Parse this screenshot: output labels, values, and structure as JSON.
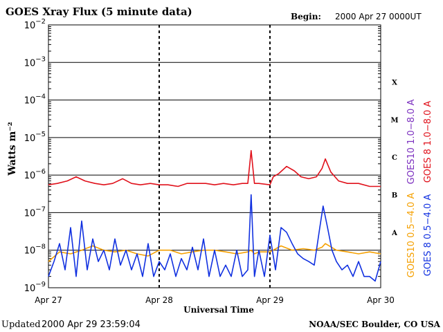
{
  "header": {
    "title": "GOES Xray Flux (5 minute data)",
    "begin_label": "Begin:",
    "begin_value": "2000 Apr 27 0000UT"
  },
  "footer": {
    "updated_label": "Updated",
    "updated_value": "2000 Apr 29 23:59:04",
    "credit": "NOAA/SEC Boulder, CO USA"
  },
  "chart_data": {
    "type": "line",
    "title": "GOES Xray Flux (5 minute data)",
    "xlabel": "Universal Time",
    "ylabel": "Watts m⁻²",
    "y_scale": "log",
    "ylim": [
      1e-09,
      0.01
    ],
    "xlim": [
      "Apr 27",
      "Apr 30"
    ],
    "x_ticks": [
      "Apr 27",
      "Apr 28",
      "Apr 29",
      "Apr 30"
    ],
    "y_ticks": [
      {
        "mantissa": "10",
        "exp": "−9",
        "value": 1e-09
      },
      {
        "mantissa": "10",
        "exp": "−8",
        "value": 1e-08
      },
      {
        "mantissa": "10",
        "exp": "−7",
        "value": 1e-07
      },
      {
        "mantissa": "10",
        "exp": "−6",
        "value": 1e-06
      },
      {
        "mantissa": "10",
        "exp": "−5",
        "value": 1e-05
      },
      {
        "mantissa": "10",
        "exp": "−4",
        "value": 0.0001
      },
      {
        "mantissa": "10",
        "exp": "−3",
        "value": 0.001
      },
      {
        "mantissa": "10",
        "exp": "−2",
        "value": 0.01
      }
    ],
    "flare_classes": [
      {
        "label": "A",
        "value": 3e-08
      },
      {
        "label": "B",
        "value": 3e-07
      },
      {
        "label": "C",
        "value": 3e-06
      },
      {
        "label": "M",
        "value": 3e-05
      },
      {
        "label": "X",
        "value": 0.0003
      }
    ],
    "grid": true,
    "legend_right": [
      {
        "name": "GOES10 1.0−8.0 A",
        "color": "#7b2fbf"
      },
      {
        "name": "GOES 8 1.0−8.0 A",
        "color": "#e0101a"
      },
      {
        "name": "GOES10 0.5−4.0 A",
        "color": "#f5a000"
      },
      {
        "name": "GOES 8 0.5−4.0 A",
        "color": "#1030e0"
      }
    ],
    "series": [
      {
        "name": "GOES 8 1.0−8.0 A",
        "color": "#e0101a",
        "x_days": [
          0,
          0.08,
          0.17,
          0.25,
          0.33,
          0.42,
          0.5,
          0.58,
          0.67,
          0.75,
          0.83,
          0.92,
          1.0,
          1.08,
          1.17,
          1.25,
          1.33,
          1.42,
          1.5,
          1.58,
          1.67,
          1.75,
          1.8,
          1.83,
          1.86,
          1.9,
          2.0,
          2.03,
          2.08,
          2.15,
          2.22,
          2.28,
          2.35,
          2.42,
          2.47,
          2.5,
          2.55,
          2.62,
          2.7,
          2.8,
          2.9,
          3.0
        ],
        "values": [
          5.5e-07,
          6e-07,
          7e-07,
          9e-07,
          7e-07,
          6e-07,
          5.5e-07,
          6e-07,
          8e-07,
          6e-07,
          5.5e-07,
          6e-07,
          5.5e-07,
          5.5e-07,
          5e-07,
          6e-07,
          6e-07,
          6e-07,
          5.5e-07,
          6e-07,
          5.5e-07,
          6e-07,
          6e-07,
          4.5e-06,
          6e-07,
          6e-07,
          5.5e-07,
          9e-07,
          1.1e-06,
          1.7e-06,
          1.3e-06,
          9e-07,
          8e-07,
          9e-07,
          1.5e-06,
          2.7e-06,
          1.2e-06,
          7e-07,
          6e-07,
          6e-07,
          5e-07,
          5e-07
        ]
      },
      {
        "name": "GOES10 0.5−4.0 A",
        "color": "#f5a000",
        "x_days": [
          0,
          0.1,
          0.2,
          0.3,
          0.4,
          0.5,
          0.6,
          0.7,
          0.8,
          0.9,
          1.0,
          1.1,
          1.2,
          1.3,
          1.4,
          1.5,
          1.6,
          1.7,
          1.8,
          1.83,
          1.86,
          1.9,
          2.0,
          2.1,
          2.2,
          2.3,
          2.4,
          2.47,
          2.5,
          2.6,
          2.7,
          2.8,
          2.9,
          3.0
        ],
        "values": [
          5e-09,
          9e-09,
          8e-09,
          1e-08,
          1.3e-08,
          1e-08,
          9e-09,
          1e-08,
          8e-09,
          7e-09,
          1e-08,
          1e-08,
          8e-09,
          9e-09,
          1e-08,
          1e-08,
          9e-09,
          8e-09,
          9e-09,
          1e-08,
          8e-09,
          9e-09,
          9e-09,
          1.3e-08,
          1e-08,
          1.1e-08,
          1e-08,
          1.2e-08,
          1.5e-08,
          1e-08,
          9e-09,
          8e-09,
          9e-09,
          8e-09
        ]
      },
      {
        "name": "GOES 8 0.5−4.0 A",
        "color": "#1030e0",
        "x_days": [
          0,
          0.05,
          0.1,
          0.15,
          0.2,
          0.25,
          0.3,
          0.35,
          0.4,
          0.45,
          0.5,
          0.55,
          0.6,
          0.65,
          0.7,
          0.75,
          0.8,
          0.85,
          0.9,
          0.95,
          1.0,
          1.05,
          1.1,
          1.15,
          1.2,
          1.25,
          1.3,
          1.35,
          1.4,
          1.45,
          1.5,
          1.55,
          1.6,
          1.65,
          1.7,
          1.75,
          1.8,
          1.83,
          1.86,
          1.9,
          1.95,
          2.0,
          2.05,
          2.1,
          2.15,
          2.2,
          2.25,
          2.3,
          2.35,
          2.4,
          2.45,
          2.48,
          2.52,
          2.56,
          2.6,
          2.65,
          2.7,
          2.75,
          2.8,
          2.85,
          2.9,
          2.95,
          3.0
        ],
        "values": [
          2e-09,
          5e-09,
          1.5e-08,
          3e-09,
          4e-08,
          2e-09,
          6e-08,
          3e-09,
          2e-08,
          5e-09,
          1e-08,
          3e-09,
          2e-08,
          4e-09,
          1e-08,
          3e-09,
          8e-09,
          2e-09,
          1.5e-08,
          2e-09,
          5e-09,
          3e-09,
          8e-09,
          2e-09,
          6e-09,
          3e-09,
          1.2e-08,
          3e-09,
          2e-08,
          2e-09,
          1e-08,
          2e-09,
          4e-09,
          2e-09,
          1e-08,
          2e-09,
          3e-09,
          3e-07,
          2e-09,
          1e-08,
          2e-09,
          2.5e-08,
          3e-09,
          4e-08,
          3e-08,
          1.5e-08,
          8e-09,
          6e-09,
          5e-09,
          4e-09,
          4e-08,
          1.5e-07,
          4e-08,
          1e-08,
          5e-09,
          3e-09,
          4e-09,
          2e-09,
          5e-09,
          2e-09,
          2e-09,
          1.5e-09,
          5e-09
        ]
      }
    ]
  }
}
